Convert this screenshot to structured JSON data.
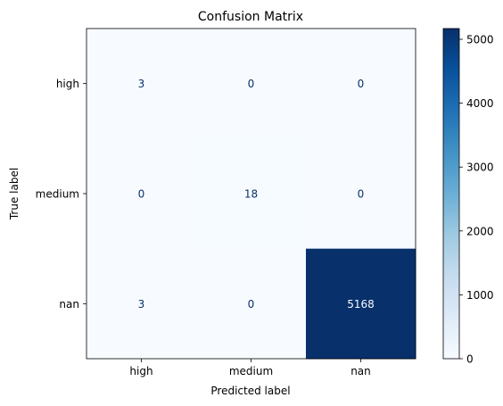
{
  "chart_data": {
    "type": "heatmap",
    "title": "Confusion Matrix",
    "xlabel": "Predicted label",
    "ylabel": "True label",
    "x_categories": [
      "high",
      "medium",
      "nan"
    ],
    "y_categories": [
      "high",
      "medium",
      "nan"
    ],
    "matrix": [
      [
        3,
        0,
        0
      ],
      [
        0,
        18,
        0
      ],
      [
        3,
        0,
        5168
      ]
    ],
    "colormap": "Blues",
    "colorbar": {
      "min": 0,
      "max": 5168,
      "ticks": [
        0,
        1000,
        2000,
        3000,
        4000,
        5000
      ],
      "tick_labels": [
        "0",
        "1000",
        "2000",
        "3000",
        "4000",
        "5000"
      ]
    },
    "colors": {
      "low": "#f7fbff",
      "high": "#08306b",
      "text_dark": "#08306b",
      "text_light": "#f7fbff"
    }
  }
}
